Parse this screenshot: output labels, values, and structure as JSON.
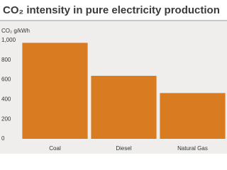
{
  "chart_data": {
    "type": "bar",
    "title": "CO₂ intensity in pure electricity production",
    "y_label": "CO₂ g/kWh",
    "categories": [
      "Coal",
      "Diesel",
      "Natural Gas"
    ],
    "values": [
      975,
      640,
      465
    ],
    "color": "#d97b21",
    "ylim": [
      0,
      1000
    ],
    "yticks": [
      0,
      200,
      400,
      600,
      800,
      {
        "value": 1000,
        "label": "1,000"
      }
    ],
    "grid": false
  }
}
